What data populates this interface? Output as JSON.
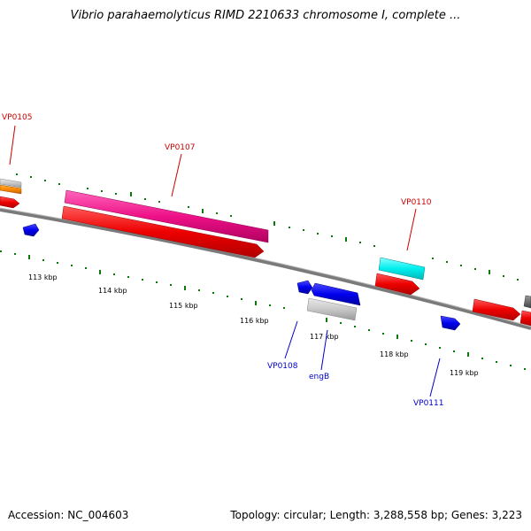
{
  "title": "Vibrio parahaemolyticus RIMD 2210633 chromosome I, complete ...",
  "footer": {
    "accession": "Accession: NC_004603",
    "summary": "Topology: circular; Length: 3,288,558 bp; Genes: 3,223"
  },
  "scale_labels": [
    "113 kbp",
    "114 kbp",
    "115 kbp",
    "116 kbp",
    "117 kbp",
    "118 kbp",
    "119 kbp"
  ],
  "gene_labels": {
    "vp0105": "VP0105",
    "vp0107": "VP0107",
    "vp0110": "VP0110",
    "vp0108": "VP0108",
    "engb": "engB",
    "vp0111": "VP0111"
  },
  "colors": {
    "red_label": "#cc0000",
    "blue_label": "#0000cc",
    "backbone": "#808080",
    "tick_dots": "#0a7a0a",
    "red_gene": "#ee0000",
    "pink_gene": "#ee1188",
    "cyan_gene": "#00eeee",
    "blue_gene": "#0000ee",
    "gray_gene": "#c8c8c8",
    "orange_gene": "#ff8800"
  }
}
